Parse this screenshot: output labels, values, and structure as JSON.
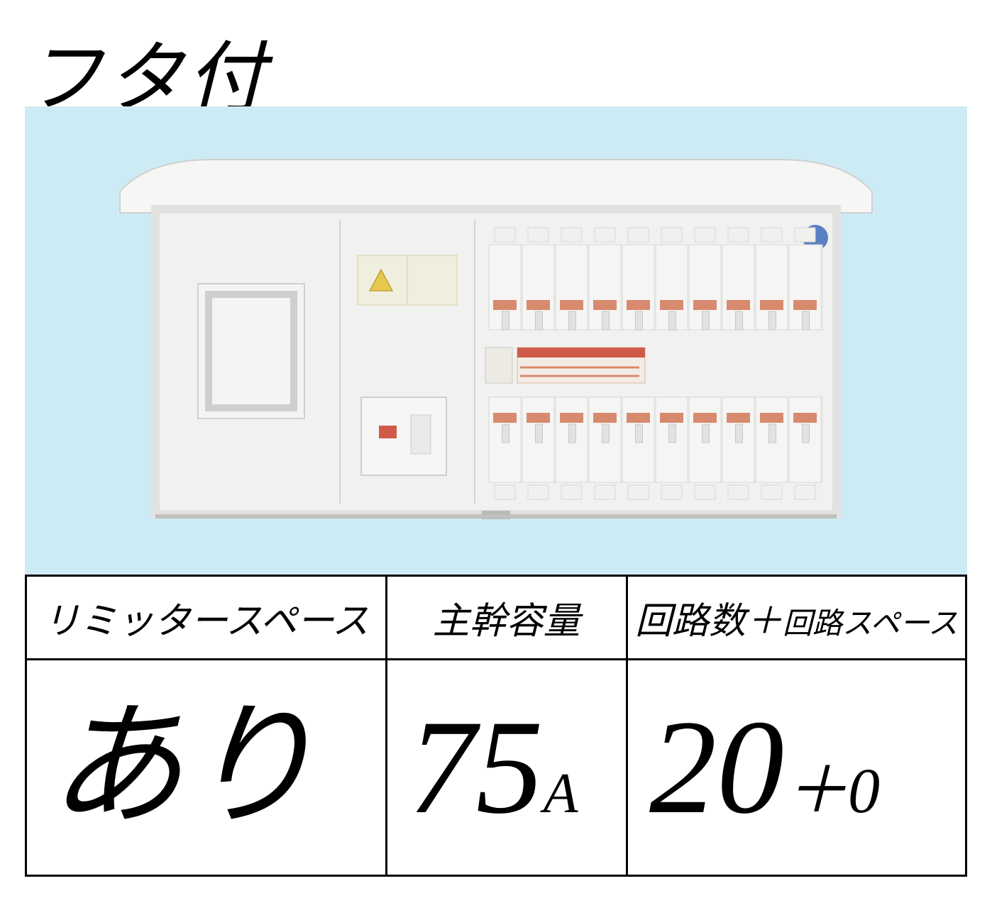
{
  "title": "フタ付",
  "background_color": "#cdebf4",
  "panel": {
    "enclosure_color": "#f1f1ef",
    "shadow_color": "#c9c9c7",
    "breaker_accent_color": "#d88a6e",
    "label_yellow": "#e8d89a",
    "sticker_blue": "#5a7fc4",
    "breaker_columns": 10,
    "main_breaker_indicator": "#d05a4a"
  },
  "spec": {
    "col1": {
      "header": "リミッタースペース",
      "value": "あり"
    },
    "col2": {
      "header": "主幹容量",
      "value_num": "75",
      "value_unit": "A"
    },
    "col3": {
      "header_a": "回路数",
      "header_plus": "＋",
      "header_b": "回路スペース",
      "value_num": "20",
      "value_plus": "＋",
      "value_extra": "0"
    }
  },
  "table_border_color": "#000000",
  "text_color": "#000000"
}
